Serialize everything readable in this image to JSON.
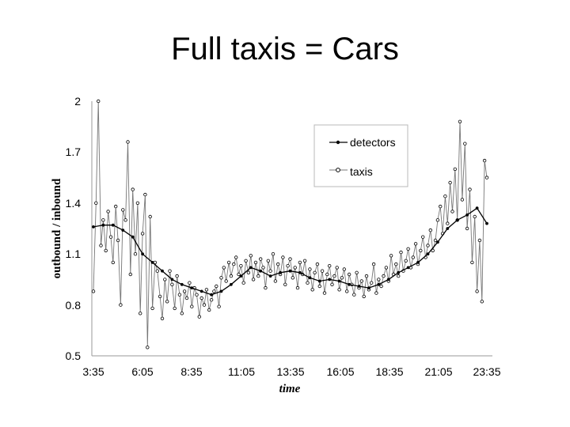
{
  "title": "Full taxis = Cars",
  "chart_data": {
    "type": "line",
    "xlabel": "time",
    "ylabel": "outbound / inbound",
    "x_ticks": [
      "3:35",
      "6:05",
      "8:35",
      "11:05",
      "13:35",
      "16:05",
      "18:35",
      "21:05",
      "23:35"
    ],
    "y_ticks": [
      "2",
      "1.7",
      "1.4",
      "1.1",
      "0.8",
      "0.5"
    ],
    "ylim": [
      0.5,
      2
    ],
    "grid": false,
    "legend_position": "top-right",
    "series": [
      {
        "name": "detectors",
        "color": "#000000",
        "x": [
          "3:35",
          "4:05",
          "4:35",
          "5:05",
          "5:35",
          "6:05",
          "6:35",
          "7:05",
          "7:35",
          "8:05",
          "8:35",
          "9:05",
          "9:35",
          "10:05",
          "10:35",
          "11:05",
          "11:35",
          "12:05",
          "12:35",
          "13:05",
          "13:35",
          "14:05",
          "14:35",
          "15:05",
          "15:35",
          "16:05",
          "16:35",
          "17:05",
          "17:35",
          "18:05",
          "18:35",
          "19:05",
          "19:35",
          "20:05",
          "20:35",
          "21:05",
          "21:35",
          "22:05",
          "22:35",
          "23:05",
          "23:35"
        ],
        "values": [
          1.26,
          1.27,
          1.27,
          1.24,
          1.2,
          1.1,
          1.05,
          1.0,
          0.95,
          0.92,
          0.9,
          0.88,
          0.86,
          0.88,
          0.92,
          0.97,
          1.02,
          1.0,
          0.97,
          0.99,
          1.0,
          0.99,
          0.96,
          0.94,
          0.95,
          0.94,
          0.92,
          0.91,
          0.9,
          0.92,
          0.95,
          0.99,
          1.02,
          1.05,
          1.1,
          1.17,
          1.25,
          1.3,
          1.33,
          1.37,
          1.28
        ]
      },
      {
        "name": "taxis",
        "color": "#777777",
        "x": [
          "3:35",
          "3:43",
          "3:50",
          "3:58",
          "4:05",
          "4:13",
          "4:20",
          "4:28",
          "4:35",
          "4:43",
          "4:50",
          "4:58",
          "5:05",
          "5:13",
          "5:20",
          "5:28",
          "5:35",
          "5:43",
          "5:50",
          "5:58",
          "6:05",
          "6:13",
          "6:20",
          "6:28",
          "6:35",
          "6:43",
          "6:50",
          "6:58",
          "7:05",
          "7:13",
          "7:20",
          "7:28",
          "7:35",
          "7:43",
          "7:50",
          "7:58",
          "8:05",
          "8:13",
          "8:20",
          "8:28",
          "8:35",
          "8:43",
          "8:50",
          "8:58",
          "9:05",
          "9:13",
          "9:20",
          "9:28",
          "9:35",
          "9:43",
          "9:50",
          "9:58",
          "10:05",
          "10:13",
          "10:20",
          "10:28",
          "10:35",
          "10:43",
          "10:50",
          "10:58",
          "11:05",
          "11:13",
          "11:20",
          "11:28",
          "11:35",
          "11:43",
          "11:50",
          "11:58",
          "12:05",
          "12:13",
          "12:20",
          "12:28",
          "12:35",
          "12:43",
          "12:50",
          "12:58",
          "13:05",
          "13:13",
          "13:20",
          "13:28",
          "13:35",
          "13:43",
          "13:50",
          "13:58",
          "14:05",
          "14:13",
          "14:20",
          "14:28",
          "14:35",
          "14:43",
          "14:50",
          "14:58",
          "15:05",
          "15:13",
          "15:20",
          "15:28",
          "15:35",
          "15:43",
          "15:50",
          "15:58",
          "16:05",
          "16:13",
          "16:20",
          "16:28",
          "16:35",
          "16:43",
          "16:50",
          "16:58",
          "17:05",
          "17:13",
          "17:20",
          "17:28",
          "17:35",
          "17:43",
          "17:50",
          "17:58",
          "18:05",
          "18:13",
          "18:20",
          "18:28",
          "18:35",
          "18:43",
          "18:50",
          "18:58",
          "19:05",
          "19:13",
          "19:20",
          "19:28",
          "19:35",
          "19:43",
          "19:50",
          "19:58",
          "20:05",
          "20:13",
          "20:20",
          "20:28",
          "20:35",
          "20:43",
          "20:50",
          "20:58",
          "21:05",
          "21:13",
          "21:20",
          "21:28",
          "21:35",
          "21:43",
          "21:50",
          "21:58",
          "22:05",
          "22:13",
          "22:20",
          "22:28",
          "22:35",
          "22:43",
          "22:50",
          "22:58",
          "23:05",
          "23:13",
          "23:20",
          "23:28",
          "23:35"
        ],
        "values": [
          0.88,
          1.4,
          2.0,
          1.15,
          1.3,
          1.12,
          1.35,
          1.2,
          1.05,
          1.38,
          1.18,
          0.8,
          1.36,
          1.3,
          1.76,
          0.98,
          1.48,
          1.1,
          1.4,
          0.75,
          1.22,
          1.45,
          0.55,
          1.32,
          0.78,
          1.05,
          1.0,
          0.85,
          0.72,
          0.95,
          0.82,
          1.0,
          0.92,
          0.78,
          0.97,
          0.86,
          0.75,
          0.88,
          0.84,
          0.93,
          0.79,
          0.9,
          0.86,
          0.73,
          0.84,
          0.8,
          0.89,
          0.77,
          0.83,
          0.88,
          0.91,
          0.79,
          0.96,
          1.02,
          0.94,
          1.05,
          0.97,
          1.04,
          1.08,
          0.98,
          1.03,
          0.93,
          1.06,
          0.99,
          1.09,
          0.95,
          1.05,
          0.97,
          1.07,
          1.02,
          0.9,
          1.06,
          1.0,
          1.1,
          0.94,
          1.04,
          0.98,
          1.08,
          0.92,
          1.03,
          1.07,
          0.96,
          1.02,
          0.9,
          1.05,
          0.98,
          1.06,
          0.93,
          1.01,
          0.89,
          0.99,
          1.04,
          0.91,
          1.0,
          0.87,
          0.98,
          1.03,
          0.92,
          0.97,
          1.02,
          0.89,
          0.96,
          1.01,
          0.88,
          0.98,
          0.92,
          0.86,
          0.99,
          0.9,
          0.94,
          0.85,
          0.97,
          0.89,
          0.93,
          1.04,
          0.87,
          0.95,
          0.91,
          0.97,
          1.02,
          0.94,
          1.09,
          0.98,
          1.04,
          0.97,
          1.11,
          1.0,
          1.06,
          1.13,
          1.02,
          1.08,
          1.16,
          1.04,
          1.12,
          1.2,
          1.08,
          1.15,
          1.24,
          1.12,
          1.18,
          1.3,
          1.38,
          1.22,
          1.44,
          1.28,
          1.52,
          1.35,
          1.6,
          1.3,
          1.88,
          1.42,
          1.75,
          1.25,
          1.48,
          1.05,
          1.32,
          0.88,
          1.18,
          0.82,
          1.65,
          1.55
        ]
      }
    ]
  }
}
